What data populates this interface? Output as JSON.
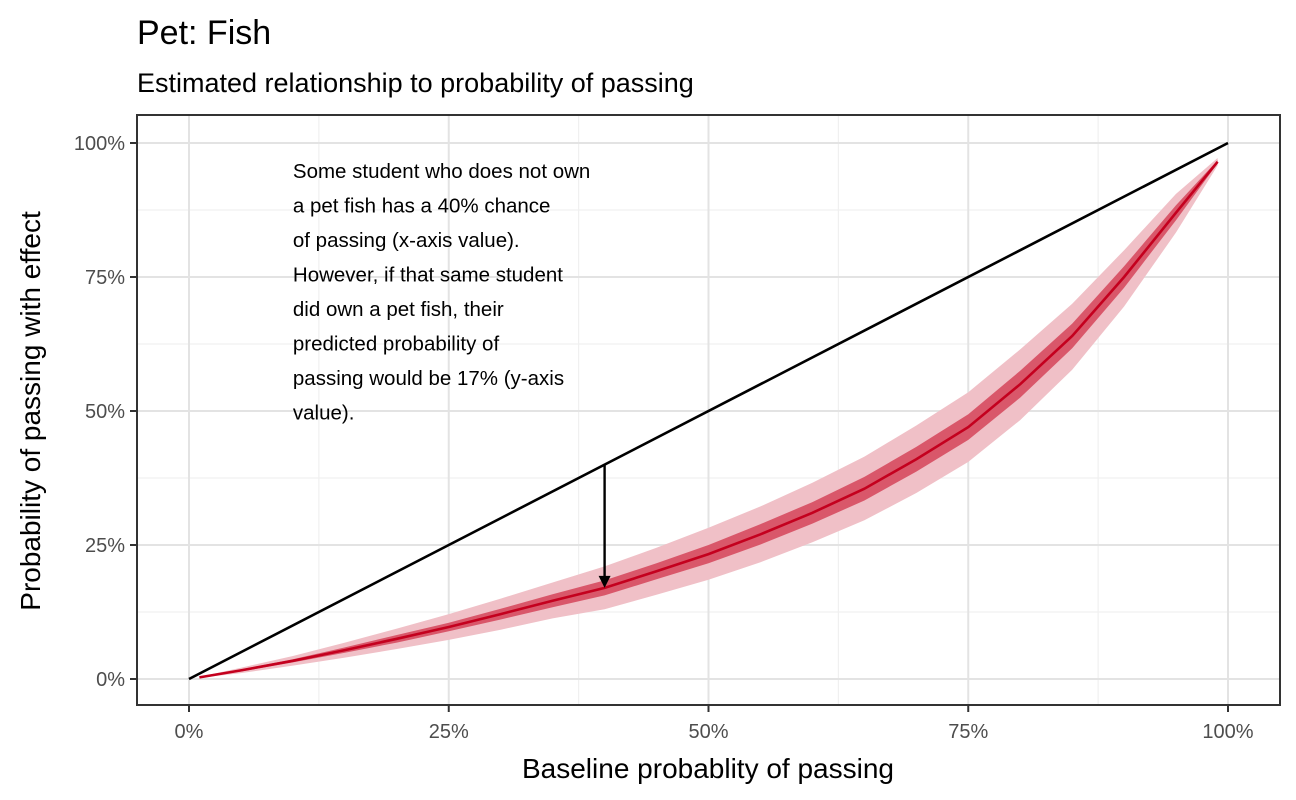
{
  "chart_data": {
    "type": "line",
    "title": "Pet: Fish",
    "subtitle": "Estimated relationship to probability of passing",
    "xlabel": "Baseline probablity of passing",
    "ylabel": "Probability of passing with effect",
    "xlim": [
      0,
      1
    ],
    "ylim": [
      0,
      1
    ],
    "x_ticks": [
      {
        "value": 0,
        "label": "0%"
      },
      {
        "value": 0.25,
        "label": "25%"
      },
      {
        "value": 0.5,
        "label": "50%"
      },
      {
        "value": 0.75,
        "label": "75%"
      },
      {
        "value": 1,
        "label": "100%"
      }
    ],
    "y_ticks": [
      {
        "value": 0,
        "label": "0%"
      },
      {
        "value": 0.25,
        "label": "25%"
      },
      {
        "value": 0.5,
        "label": "50%"
      },
      {
        "value": 0.75,
        "label": "75%"
      },
      {
        "value": 1,
        "label": "100%"
      }
    ],
    "grid": true,
    "reference_line": {
      "x": [
        0,
        1
      ],
      "y": [
        0,
        1
      ],
      "color": "#000000"
    },
    "effect_curve": {
      "color": "#c4001e",
      "inner_band_color": "#d9576a",
      "outer_band_color": "#f0c0c7",
      "x": [
        0.01,
        0.05,
        0.1,
        0.15,
        0.2,
        0.25,
        0.3,
        0.35,
        0.4,
        0.45,
        0.5,
        0.55,
        0.6,
        0.65,
        0.7,
        0.75,
        0.8,
        0.85,
        0.9,
        0.95,
        0.99
      ],
      "y": [
        0.003,
        0.016,
        0.034,
        0.054,
        0.075,
        0.097,
        0.121,
        0.146,
        0.17,
        0.201,
        0.233,
        0.27,
        0.31,
        0.355,
        0.41,
        0.47,
        0.55,
        0.64,
        0.75,
        0.87,
        0.965
      ],
      "inner_lo": [
        0.003,
        0.014,
        0.031,
        0.049,
        0.068,
        0.089,
        0.111,
        0.134,
        0.156,
        0.186,
        0.216,
        0.251,
        0.29,
        0.333,
        0.387,
        0.446,
        0.525,
        0.617,
        0.73,
        0.856,
        0.962
      ],
      "inner_hi": [
        0.003,
        0.018,
        0.037,
        0.059,
        0.082,
        0.105,
        0.131,
        0.158,
        0.184,
        0.216,
        0.25,
        0.289,
        0.33,
        0.377,
        0.433,
        0.494,
        0.575,
        0.663,
        0.77,
        0.884,
        0.968
      ],
      "outer_lo": [
        0.002,
        0.011,
        0.025,
        0.04,
        0.056,
        0.073,
        0.092,
        0.113,
        0.13,
        0.157,
        0.185,
        0.218,
        0.255,
        0.296,
        0.347,
        0.405,
        0.483,
        0.577,
        0.695,
        0.833,
        0.958
      ],
      "outer_hi": [
        0.004,
        0.021,
        0.043,
        0.068,
        0.094,
        0.121,
        0.15,
        0.18,
        0.21,
        0.245,
        0.282,
        0.322,
        0.366,
        0.415,
        0.473,
        0.535,
        0.615,
        0.7,
        0.8,
        0.905,
        0.972
      ]
    },
    "arrow": {
      "x": 0.4,
      "y_start": 0.4,
      "y_end": 0.17
    },
    "annotation": {
      "x": 0.1,
      "y": 0.935,
      "lines": [
        "Some student who does not own",
        "a pet fish has a 40% chance",
        "of passing (x-axis value).",
        "However, if that same student",
        "did own a pet fish, their",
        "predicted probability of",
        "passing would be 17% (y-axis",
        "value)."
      ]
    }
  }
}
